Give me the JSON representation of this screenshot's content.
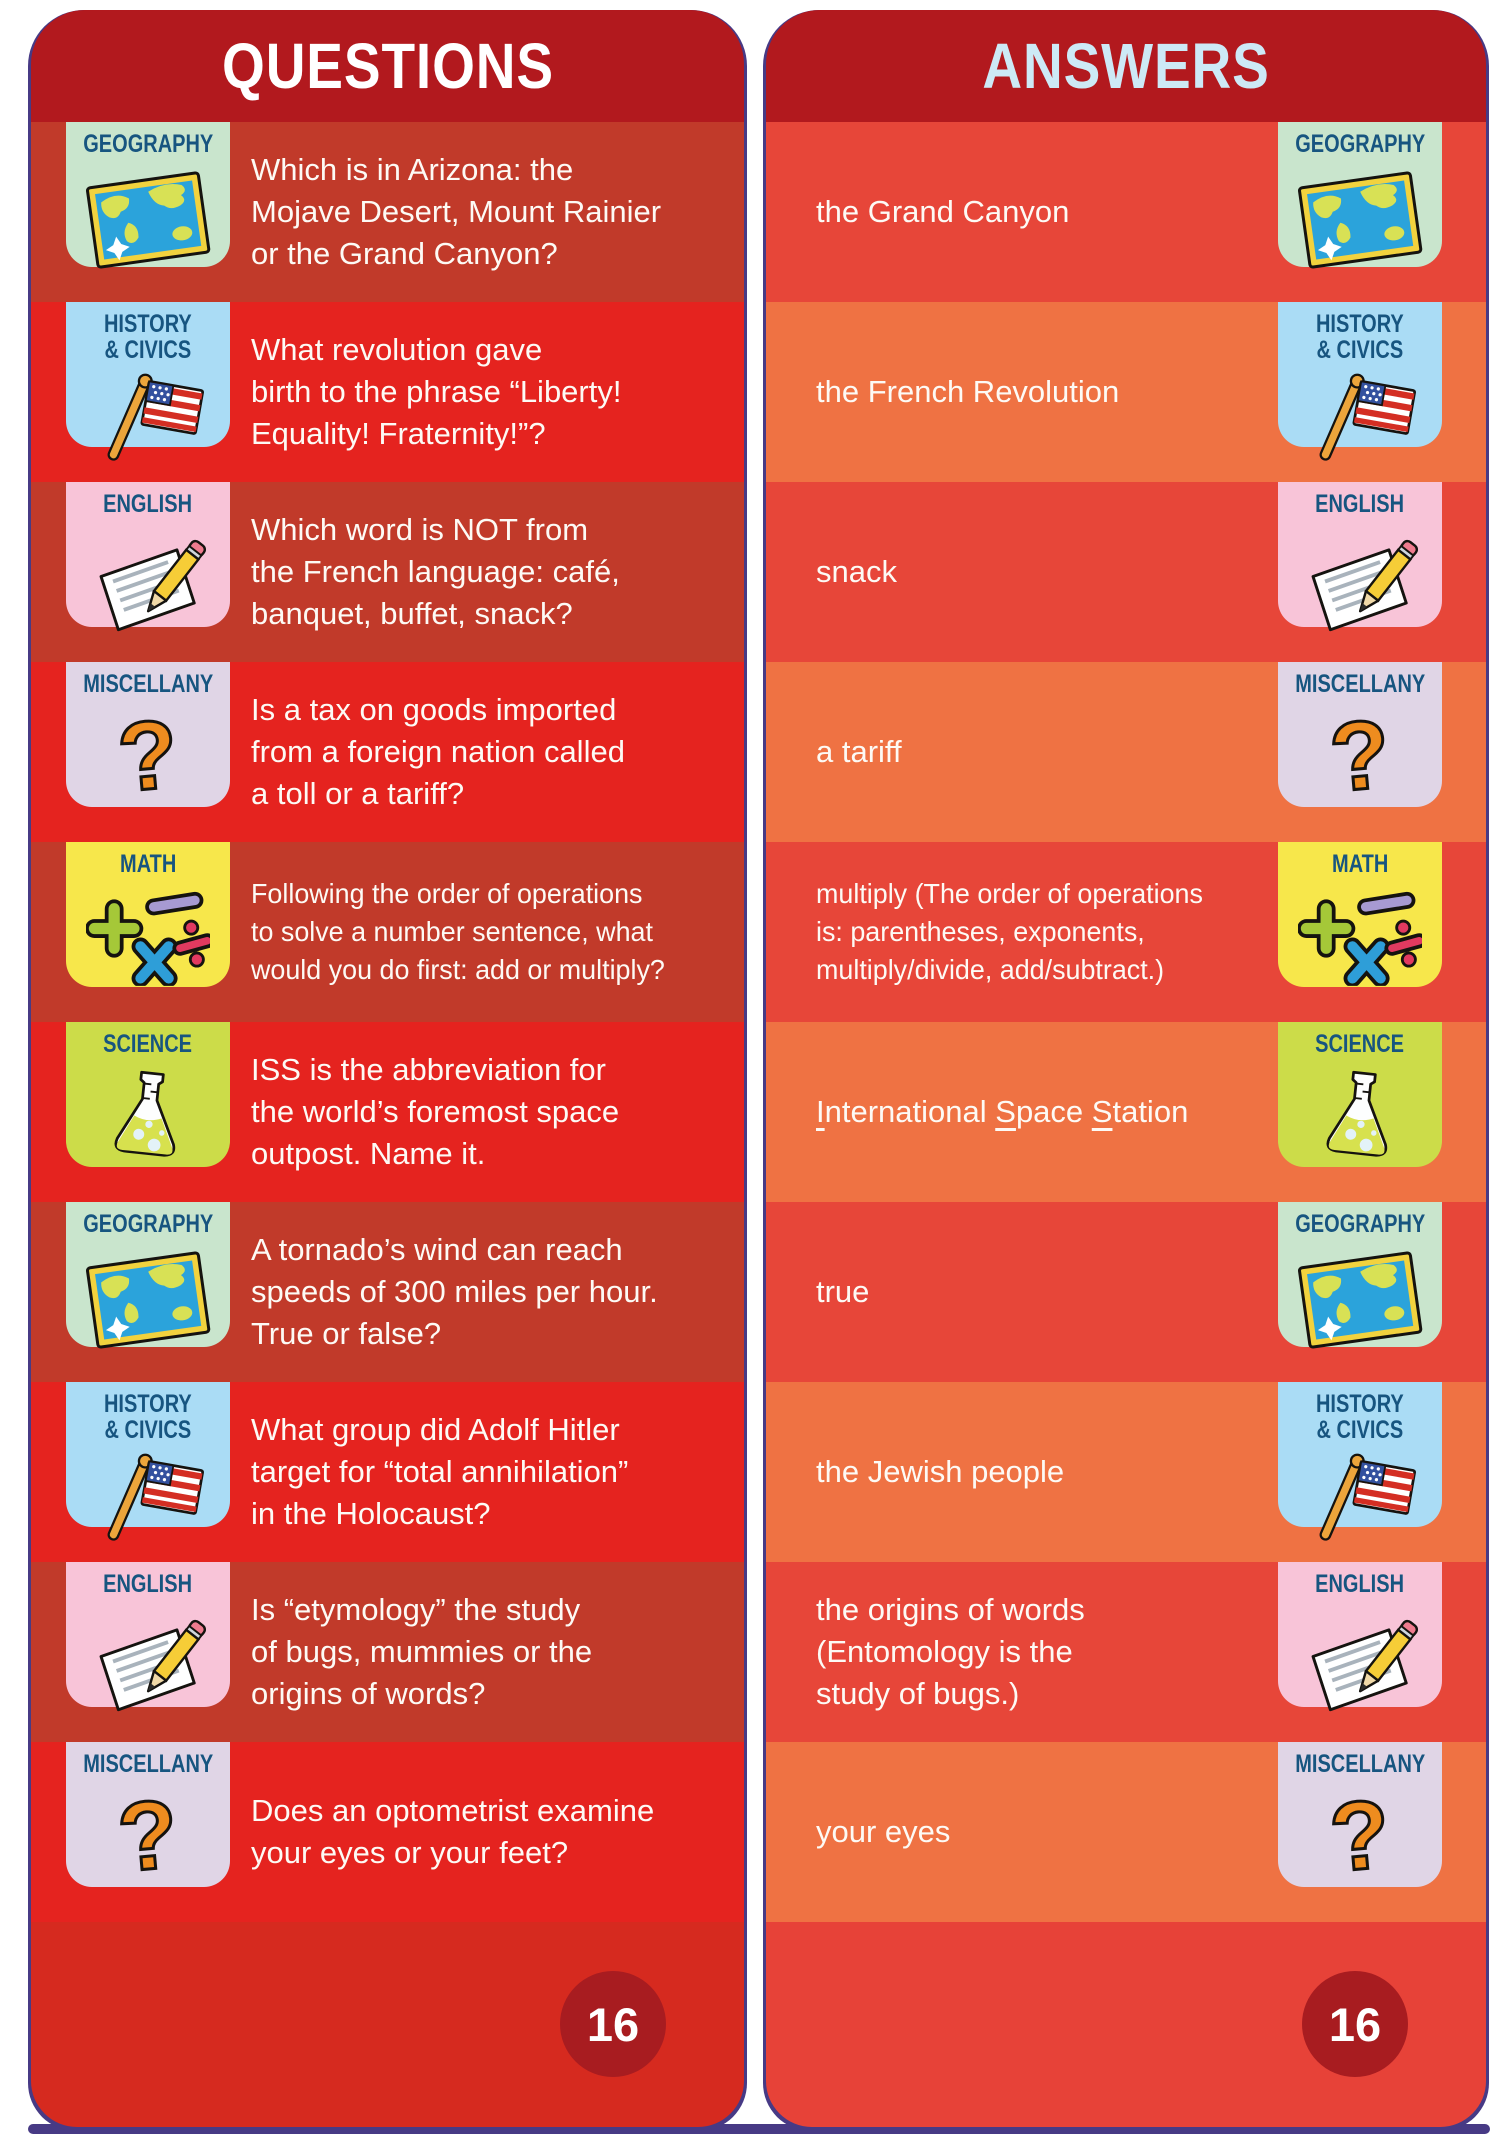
{
  "questions_panel": {
    "title": "QUESTIONS",
    "page_number": "16"
  },
  "answers_panel": {
    "title": "ANSWERS",
    "page_number": "16"
  },
  "rows": [
    {
      "category": "GEOGRAPHY",
      "icon": "map-icon",
      "question": "Which is in Arizona: the\nMojave Desert, Mount Rainier\nor the Grand Canyon?",
      "answer": "the Grand Canyon"
    },
    {
      "category": "HISTORY\n& CIVICS",
      "icon": "us-flag-icon",
      "question": "What revolution gave\nbirth to the phrase “Liberty!\nEquality! Fraternity!”?",
      "answer": "the French Revolution"
    },
    {
      "category": "ENGLISH",
      "icon": "paper-pencil-icon",
      "question": "Which word is NOT from\nthe French language: café,\nbanquet, buffet, snack?",
      "answer": "snack"
    },
    {
      "category": "MISCELLANY",
      "icon": "question-mark-icon",
      "question": "Is a tax on goods imported\nfrom a foreign nation called\na toll or a tariff?",
      "answer": "a tariff"
    },
    {
      "category": "MATH",
      "icon": "math-symbols-icon",
      "question": "Following the order of operations\nto solve a number sentence, what\nwould you do first: add or multiply?",
      "answer": "multiply (The order of operations\nis: parentheses, exponents,\nmultiply/divide, add/subtract.)"
    },
    {
      "category": "SCIENCE",
      "icon": "flask-icon",
      "question": "ISS is the abbreviation for\nthe world’s foremost space\noutpost. Name it.",
      "answer": "International Space Station",
      "answer_segments": [
        {
          "t": "I",
          "u": true
        },
        {
          "t": "nternational "
        },
        {
          "t": "S",
          "u": true
        },
        {
          "t": "pace "
        },
        {
          "t": "S",
          "u": true
        },
        {
          "t": "tation"
        }
      ]
    },
    {
      "category": "GEOGRAPHY",
      "icon": "map-icon",
      "question": "A tornado’s wind can reach\nspeeds of 300 miles per hour.\nTrue or false?",
      "answer": "true"
    },
    {
      "category": "HISTORY\n& CIVICS",
      "icon": "us-flag-icon",
      "question": "What group did Adolf Hitler\ntarget for “total annihilation”\nin the Holocaust?",
      "answer": "the Jewish people"
    },
    {
      "category": "ENGLISH",
      "icon": "paper-pencil-icon",
      "question": "Is “etymology” the study\nof bugs, mummies or the\norigins of words?",
      "answer": "the origins of words\n(Entomology is the\nstudy of bugs.)"
    },
    {
      "category": "MISCELLANY",
      "icon": "question-mark-icon",
      "question": "Does an optometrist examine\nyour eyes or your feet?",
      "answer": "your eyes"
    }
  ],
  "colors": {
    "header_red": "#b2191e",
    "question_row_dark": "#c13a2a",
    "question_row_bright": "#e5231f",
    "answer_row_red": "#e74639",
    "answer_row_orange": "#ef7243",
    "questions_footer": "#d62a1f",
    "answers_footer": "#e74238",
    "page_circle": "#a81c20",
    "card_edge_purple": "#473a85",
    "questions_title_color": "#ffffff",
    "answers_title_color": "#cde9f6",
    "badge_label_color": "#175580",
    "badge_geography": "#c9e5cd",
    "badge_history_civics": "#aadcf5",
    "badge_english": "#f8c4d8",
    "badge_miscellany": "#e0d5e6",
    "badge_math": "#f7e74b",
    "badge_science": "#ccdc49",
    "text_color": "#fdfaf5"
  }
}
